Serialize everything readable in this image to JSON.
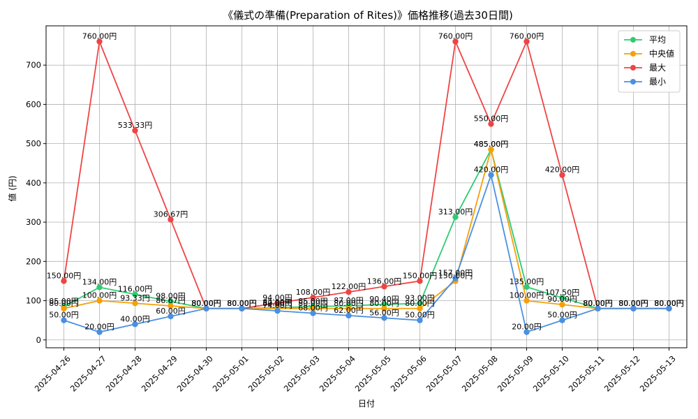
{
  "chart_data": {
    "type": "line",
    "title": "《儀式の準備(Preparation of Rites)》価格推移(過去30日間)",
    "xlabel": "日付",
    "ylabel": "値 (円)",
    "ylim": [
      -20,
      800
    ],
    "yticks": [
      0,
      100,
      200,
      300,
      400,
      500,
      600,
      700
    ],
    "grid": true,
    "legend_position": "top-right",
    "label_suffix": "円",
    "categories": [
      "2025-04-26",
      "2025-04-27",
      "2025-04-28",
      "2025-04-29",
      "2025-04-30",
      "2025-05-01",
      "2025-05-02",
      "2025-05-03",
      "2025-05-04",
      "2025-05-05",
      "2025-05-06",
      "2025-05-07",
      "2025-05-08",
      "2025-05-09",
      "2025-05-10",
      "2025-05-11",
      "2025-05-12",
      "2025-05-13"
    ],
    "series": [
      {
        "name": "平均",
        "color": "#2ecc71",
        "values": [
          85.0,
          134.0,
          116.0,
          98.0,
          80.0,
          80.0,
          82.0,
          85.0,
          87.0,
          90.4,
          93.0,
          313.0,
          485.0,
          135.0,
          107.5,
          80.0,
          80.0,
          80.0
        ]
      },
      {
        "name": "中央値",
        "color": "#f5a00a",
        "values": [
          80.0,
          100.0,
          93.33,
          86.67,
          80.0,
          80.0,
          80.0,
          80.0,
          80.0,
          80.0,
          80.0,
          150.0,
          485.0,
          100.0,
          90.0,
          80.0,
          80.0,
          80.0
        ]
      },
      {
        "name": "最大",
        "color": "#ef4444",
        "values": [
          150.0,
          760.0,
          533.33,
          306.67,
          80.0,
          80.0,
          94.0,
          108.0,
          122.0,
          136.0,
          150.0,
          760.0,
          550.0,
          760.0,
          420.0,
          80.0,
          80.0,
          80.0
        ]
      },
      {
        "name": "最小",
        "color": "#4a90e2",
        "values": [
          50.0,
          20.0,
          40.0,
          60.0,
          80.0,
          80.0,
          74.0,
          68.0,
          62.0,
          56.0,
          50.0,
          157.0,
          420.0,
          20.0,
          50.0,
          80.0,
          80.0,
          80.0
        ]
      }
    ]
  }
}
